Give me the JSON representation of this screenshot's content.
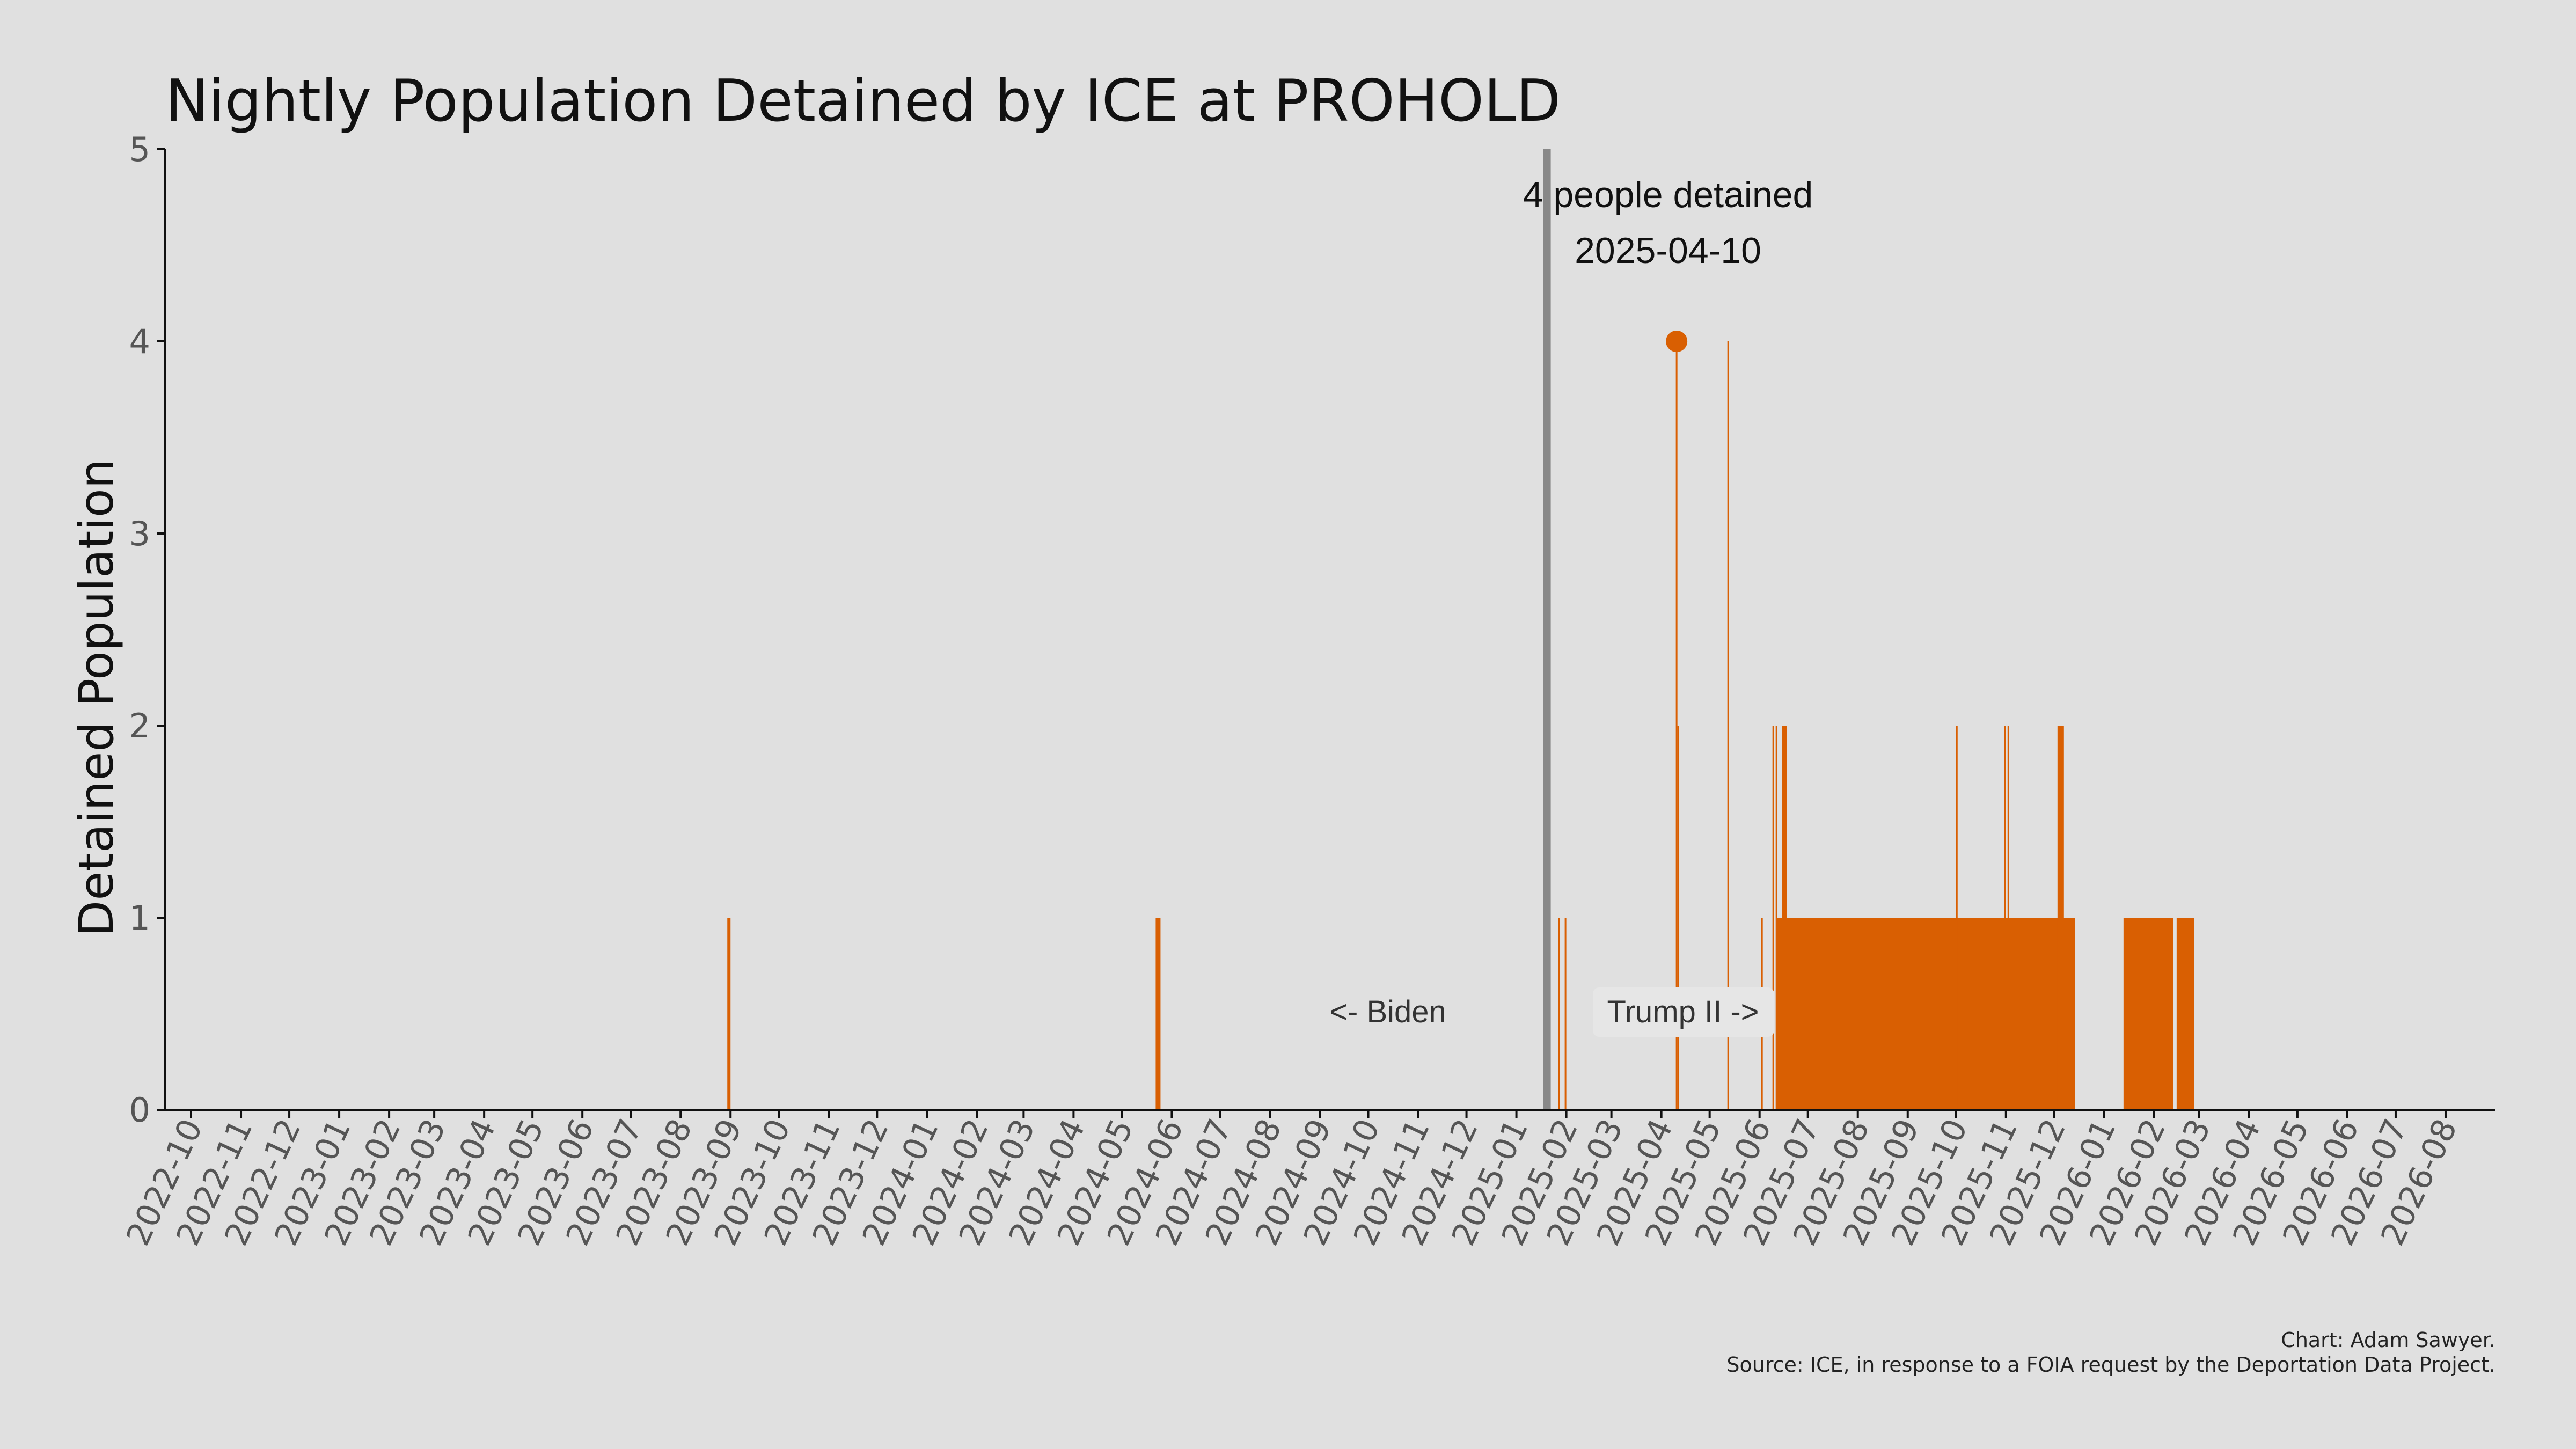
{
  "chart_data": {
    "type": "bar",
    "title": "Nightly Population Detained by ICE at PROHOLD",
    "ylabel": "Detained Population",
    "xlabel": "",
    "xlim": [
      "2022-09-15",
      "2026-09-01"
    ],
    "ylim": [
      0,
      5
    ],
    "y_ticks": [
      0,
      1,
      2,
      3,
      4,
      5
    ],
    "x_ticks": [
      "2022-10",
      "2022-11",
      "2022-12",
      "2023-01",
      "2023-02",
      "2023-03",
      "2023-04",
      "2023-05",
      "2023-06",
      "2023-07",
      "2023-08",
      "2023-09",
      "2023-10",
      "2023-11",
      "2023-12",
      "2024-01",
      "2024-02",
      "2024-03",
      "2024-04",
      "2024-05",
      "2024-06",
      "2024-07",
      "2024-08",
      "2024-09",
      "2024-10",
      "2024-11",
      "2024-12",
      "2025-01",
      "2025-02",
      "2025-03",
      "2025-04",
      "2025-05",
      "2025-06",
      "2025-07",
      "2025-08",
      "2025-09",
      "2025-10",
      "2025-11",
      "2025-12",
      "2026-01",
      "2026-02",
      "2026-03",
      "2026-04",
      "2026-05",
      "2026-06",
      "2026-07",
      "2026-08"
    ],
    "grid": false,
    "color": "#d95f02",
    "series": [
      {
        "values": [
          {
            "start": "2023-08-30",
            "end": "2023-08-31",
            "value": 1
          },
          {
            "start": "2024-05-22",
            "end": "2024-05-24",
            "value": 1
          },
          {
            "start": "2025-01-27",
            "end": "2025-01-27",
            "value": 1
          },
          {
            "start": "2025-01-31",
            "end": "2025-01-31",
            "value": 1
          },
          {
            "start": "2025-04-10",
            "end": "2025-04-10",
            "value": 4
          },
          {
            "start": "2025-04-11",
            "end": "2025-04-11",
            "value": 2
          },
          {
            "start": "2025-05-12",
            "end": "2025-05-12",
            "value": 4
          },
          {
            "start": "2025-06-02",
            "end": "2025-06-02",
            "value": 1
          },
          {
            "start": "2025-06-09",
            "end": "2025-06-09",
            "value": 2
          },
          {
            "start": "2025-06-11",
            "end": "2025-06-11",
            "value": 2
          },
          {
            "start": "2025-06-12",
            "end": "2025-12-13",
            "value": 1
          },
          {
            "start": "2025-06-15",
            "end": "2025-06-17",
            "value": 2
          },
          {
            "start": "2025-10-01",
            "end": "2025-10-01",
            "value": 2
          },
          {
            "start": "2025-10-31",
            "end": "2025-10-31",
            "value": 2
          },
          {
            "start": "2025-11-02",
            "end": "2025-11-02",
            "value": 2
          },
          {
            "start": "2025-12-03",
            "end": "2025-12-06",
            "value": 2
          },
          {
            "start": "2026-01-13",
            "end": "2026-02-12",
            "value": 1
          },
          {
            "start": "2026-02-15",
            "end": "2026-02-25",
            "value": 1
          }
        ]
      }
    ],
    "vline": {
      "date": "2025-01-20",
      "color": "#888888"
    },
    "highlight": {
      "date": "2025-04-10",
      "value": 4,
      "label_line1": "4 people detained",
      "label_line2": "2025-04-10"
    },
    "annotations": {
      "left": "<- Biden",
      "right": "Trump II ->"
    },
    "credit_line1": "Chart: Adam Sawyer.",
    "credit_line2": "Source: ICE, in response to a FOIA request by the Deportation Data Project."
  }
}
